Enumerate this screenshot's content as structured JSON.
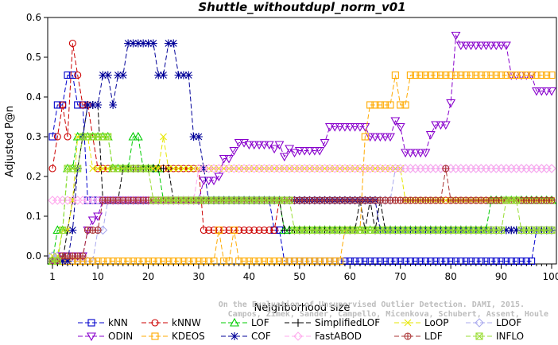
{
  "chart_data": {
    "type": "line",
    "title": "Shuttle_withoutdupl_norm_v01",
    "xlabel": "Neighborhood size",
    "ylabel": "Adjusted P@n",
    "xlim": [
      1,
      100
    ],
    "ylim": [
      -0.02,
      0.6
    ],
    "xticks": [
      1,
      10,
      20,
      30,
      40,
      50,
      60,
      70,
      80,
      90,
      100
    ],
    "yticks": [
      0.0,
      0.1,
      0.2,
      0.3,
      0.4,
      0.5,
      0.6
    ],
    "xtick_labels": [
      "1",
      "10",
      "20",
      "30",
      "40",
      "50",
      "60",
      "70",
      "80",
      "90",
      "100"
    ],
    "ytick_labels": [
      "0.0",
      "0.1",
      "0.2",
      "0.3",
      "0.4",
      "0.5",
      "0.6"
    ],
    "grid": false,
    "legend_position": "bottom",
    "credit": "Campos, Zimek, Sander, Campello, Micenkova, Schubert, Assent, Houle\nOn the Evaluation of Unsupervised Outlier Detection. DAMI, 2015.",
    "series": [
      {
        "name": "kNN",
        "color": "#0000cc",
        "marker": "square",
        "dash": "6,3",
        "points": [
          [
            1,
            0.3
          ],
          [
            2,
            0.38
          ],
          [
            3,
            0.38
          ],
          [
            4,
            0.455
          ],
          [
            5,
            0.455
          ],
          [
            6,
            0.38
          ],
          [
            7,
            0.38
          ],
          [
            8,
            0.14
          ],
          [
            20,
            0.14
          ],
          [
            30,
            0.14
          ],
          [
            40,
            0.14
          ],
          [
            44,
            0.14
          ],
          [
            45,
            0.065
          ],
          [
            46,
            0.065
          ],
          [
            47,
            -0.013
          ],
          [
            96,
            -0.013
          ],
          [
            97,
            0.065
          ],
          [
            100,
            0.065
          ]
        ]
      },
      {
        "name": "kNNW",
        "color": "#cc0000",
        "marker": "circle",
        "dash": "6,3",
        "points": [
          [
            1,
            0.22
          ],
          [
            2,
            0.3
          ],
          [
            3,
            0.38
          ],
          [
            4,
            0.3
          ],
          [
            5,
            0.535
          ],
          [
            6,
            0.455
          ],
          [
            7,
            0.38
          ],
          [
            8,
            0.38
          ],
          [
            9,
            0.3
          ],
          [
            10,
            0.22
          ],
          [
            20,
            0.22
          ],
          [
            30,
            0.22
          ],
          [
            31,
            0.065
          ],
          [
            40,
            0.065
          ],
          [
            45,
            0.065
          ],
          [
            46,
            0.14
          ],
          [
            60,
            0.14
          ],
          [
            80,
            0.14
          ],
          [
            100,
            0.14
          ]
        ]
      },
      {
        "name": "LOF",
        "color": "#00cc00",
        "marker": "triangle",
        "dash": "6,3",
        "points": [
          [
            1,
            -0.013
          ],
          [
            2,
            0.065
          ],
          [
            3,
            0.065
          ],
          [
            4,
            0.22
          ],
          [
            5,
            0.22
          ],
          [
            6,
            0.3
          ],
          [
            10,
            0.3
          ],
          [
            12,
            0.3
          ],
          [
            13,
            0.22
          ],
          [
            16,
            0.22
          ],
          [
            17,
            0.3
          ],
          [
            18,
            0.3
          ],
          [
            19,
            0.22
          ],
          [
            22,
            0.22
          ],
          [
            23,
            0.14
          ],
          [
            40,
            0.14
          ],
          [
            46,
            0.14
          ],
          [
            47,
            0.065
          ],
          [
            60,
            0.065
          ],
          [
            70,
            0.065
          ],
          [
            87,
            0.065
          ],
          [
            88,
            0.14
          ],
          [
            100,
            0.14
          ]
        ]
      },
      {
        "name": "SimplifiedLOF",
        "color": "#000000",
        "marker": "plus",
        "dash": "6,3",
        "points": [
          [
            1,
            -0.013
          ],
          [
            2,
            -0.013
          ],
          [
            3,
            -0.013
          ],
          [
            4,
            0.065
          ],
          [
            5,
            0.14
          ],
          [
            6,
            0.22
          ],
          [
            7,
            0.3
          ],
          [
            8,
            0.38
          ],
          [
            9,
            0.38
          ],
          [
            10,
            0.38
          ],
          [
            11,
            0.14
          ],
          [
            14,
            0.14
          ],
          [
            15,
            0.22
          ],
          [
            24,
            0.22
          ],
          [
            25,
            0.14
          ],
          [
            45,
            0.14
          ],
          [
            47,
            0.065
          ],
          [
            60,
            0.065
          ],
          [
            62,
            0.14
          ],
          [
            63,
            0.065
          ],
          [
            64,
            0.14
          ],
          [
            65,
            0.065
          ],
          [
            66,
            0.14
          ],
          [
            67,
            0.065
          ],
          [
            100,
            0.065
          ]
        ]
      },
      {
        "name": "LoOP",
        "color": "#e6e600",
        "marker": "x",
        "dash": "6,3",
        "points": [
          [
            1,
            0.0
          ],
          [
            2,
            0.0
          ],
          [
            3,
            0.065
          ],
          [
            4,
            0.065
          ],
          [
            5,
            0.14
          ],
          [
            6,
            0.3
          ],
          [
            7,
            0.3
          ],
          [
            8,
            0.3
          ],
          [
            9,
            0.22
          ],
          [
            10,
            0.22
          ],
          [
            15,
            0.22
          ],
          [
            22,
            0.22
          ],
          [
            23,
            0.3
          ],
          [
            24,
            0.22
          ],
          [
            40,
            0.22
          ],
          [
            50,
            0.22
          ],
          [
            60,
            0.22
          ],
          [
            70,
            0.22
          ],
          [
            71,
            0.14
          ],
          [
            75,
            0.14
          ],
          [
            80,
            0.14
          ],
          [
            100,
            0.14
          ]
        ]
      },
      {
        "name": "LDOF",
        "color": "#aaaaee",
        "marker": "diamond",
        "dash": "6,3",
        "points": [
          [
            1,
            0.0
          ],
          [
            2,
            0.0
          ],
          [
            3,
            -0.013
          ],
          [
            10,
            0.065
          ],
          [
            11,
            0.065
          ],
          [
            12,
            0.14
          ],
          [
            20,
            0.14
          ],
          [
            30,
            0.14
          ],
          [
            40,
            0.14
          ],
          [
            50,
            0.14
          ],
          [
            55,
            0.14
          ],
          [
            60,
            0.14
          ],
          [
            68,
            0.14
          ],
          [
            69,
            0.22
          ],
          [
            80,
            0.22
          ],
          [
            100,
            0.22
          ]
        ]
      },
      {
        "name": "ODIN",
        "color": "#8800cc",
        "marker": "triangle-down",
        "dash": "6,3",
        "points": [
          [
            1,
            -0.013
          ],
          [
            2,
            -0.013
          ],
          [
            3,
            0.0
          ],
          [
            6,
            0.0
          ],
          [
            7,
            0.0
          ],
          [
            8,
            0.065
          ],
          [
            9,
            0.09
          ],
          [
            10,
            0.1
          ],
          [
            11,
            0.14
          ],
          [
            12,
            0.14
          ],
          [
            13,
            0.14
          ],
          [
            20,
            0.14
          ],
          [
            30,
            0.14
          ],
          [
            31,
            0.19
          ],
          [
            32,
            0.19
          ],
          [
            33,
            0.19
          ],
          [
            34,
            0.2
          ],
          [
            35,
            0.245
          ],
          [
            36,
            0.245
          ],
          [
            37,
            0.265
          ],
          [
            38,
            0.285
          ],
          [
            40,
            0.28
          ],
          [
            45,
            0.27
          ],
          [
            46,
            0.28
          ],
          [
            47,
            0.25
          ],
          [
            48,
            0.27
          ],
          [
            49,
            0.26
          ],
          [
            50,
            0.265
          ],
          [
            54,
            0.265
          ],
          [
            55,
            0.285
          ],
          [
            56,
            0.325
          ],
          [
            63,
            0.325
          ],
          [
            64,
            0.3
          ],
          [
            68,
            0.3
          ],
          [
            69,
            0.34
          ],
          [
            70,
            0.325
          ],
          [
            71,
            0.26
          ],
          [
            75,
            0.26
          ],
          [
            76,
            0.305
          ],
          [
            77,
            0.33
          ],
          [
            79,
            0.33
          ],
          [
            80,
            0.385
          ],
          [
            81,
            0.555
          ],
          [
            82,
            0.53
          ],
          [
            91,
            0.53
          ],
          [
            92,
            0.455
          ],
          [
            96,
            0.455
          ],
          [
            97,
            0.415
          ],
          [
            100,
            0.415
          ]
        ]
      },
      {
        "name": "KDEOS",
        "color": "#ffaa00",
        "marker": "square",
        "dash": "6,3",
        "points": [
          [
            1,
            -0.013
          ],
          [
            2,
            -0.013
          ],
          [
            5,
            -0.013
          ],
          [
            6,
            -0.013
          ],
          [
            10,
            -0.013
          ],
          [
            20,
            -0.013
          ],
          [
            30,
            -0.013
          ],
          [
            33,
            -0.013
          ],
          [
            34,
            0.065
          ],
          [
            35,
            -0.013
          ],
          [
            37,
            0.065
          ],
          [
            38,
            -0.013
          ],
          [
            40,
            -0.013
          ],
          [
            50,
            -0.013
          ],
          [
            58,
            -0.013
          ],
          [
            59,
            0.065
          ],
          [
            62,
            0.065
          ],
          [
            63,
            0.3
          ],
          [
            64,
            0.38
          ],
          [
            68,
            0.38
          ],
          [
            69,
            0.455
          ],
          [
            70,
            0.38
          ],
          [
            71,
            0.38
          ],
          [
            72,
            0.455
          ],
          [
            80,
            0.455
          ],
          [
            90,
            0.455
          ],
          [
            100,
            0.455
          ]
        ]
      },
      {
        "name": "COF",
        "color": "#000099",
        "marker": "asterisk",
        "dash": "6,3",
        "points": [
          [
            1,
            -0.013
          ],
          [
            2,
            -0.013
          ],
          [
            3,
            -0.013
          ],
          [
            4,
            -0.013
          ],
          [
            5,
            0.065
          ],
          [
            6,
            0.22
          ],
          [
            7,
            0.3
          ],
          [
            8,
            0.38
          ],
          [
            9,
            0.38
          ],
          [
            10,
            0.38
          ],
          [
            11,
            0.455
          ],
          [
            12,
            0.455
          ],
          [
            13,
            0.38
          ],
          [
            14,
            0.455
          ],
          [
            15,
            0.455
          ],
          [
            16,
            0.535
          ],
          [
            21,
            0.535
          ],
          [
            22,
            0.455
          ],
          [
            23,
            0.455
          ],
          [
            24,
            0.535
          ],
          [
            25,
            0.535
          ],
          [
            26,
            0.455
          ],
          [
            28,
            0.455
          ],
          [
            29,
            0.3
          ],
          [
            30,
            0.3
          ],
          [
            31,
            0.22
          ],
          [
            32,
            0.14
          ],
          [
            40,
            0.14
          ],
          [
            60,
            0.14
          ],
          [
            65,
            0.14
          ],
          [
            66,
            0.065
          ],
          [
            100,
            0.065
          ]
        ]
      },
      {
        "name": "FastABOD",
        "color": "#ffaaee",
        "marker": "diamond",
        "dash": "6,3",
        "points": [
          [
            1,
            0.14
          ],
          [
            2,
            0.14
          ],
          [
            3,
            0.14
          ],
          [
            10,
            0.14
          ],
          [
            20,
            0.14
          ],
          [
            30,
            0.22
          ],
          [
            40,
            0.22
          ],
          [
            50,
            0.22
          ],
          [
            60,
            0.22
          ],
          [
            70,
            0.22
          ],
          [
            80,
            0.22
          ],
          [
            90,
            0.22
          ],
          [
            100,
            0.22
          ]
        ]
      },
      {
        "name": "LDF",
        "color": "#aa3333",
        "marker": "circle-plus",
        "dash": "6,3",
        "points": [
          [
            1,
            -0.013
          ],
          [
            2,
            -0.013
          ],
          [
            3,
            0.0
          ],
          [
            6,
            0.0
          ],
          [
            8,
            0.065
          ],
          [
            9,
            0.065
          ],
          [
            10,
            0.065
          ],
          [
            11,
            0.14
          ],
          [
            20,
            0.14
          ],
          [
            30,
            0.14
          ],
          [
            40,
            0.14
          ],
          [
            50,
            0.14
          ],
          [
            60,
            0.14
          ],
          [
            70,
            0.14
          ],
          [
            78,
            0.14
          ],
          [
            79,
            0.22
          ],
          [
            80,
            0.14
          ],
          [
            100,
            0.14
          ]
        ]
      },
      {
        "name": "INFLO",
        "color": "#99dd33",
        "marker": "square-x",
        "dash": "6,3",
        "points": [
          [
            1,
            -0.013
          ],
          [
            2,
            -0.013
          ],
          [
            3,
            0.065
          ],
          [
            4,
            0.22
          ],
          [
            5,
            0.22
          ],
          [
            6,
            0.22
          ],
          [
            7,
            0.3
          ],
          [
            10,
            0.3
          ],
          [
            12,
            0.3
          ],
          [
            13,
            0.22
          ],
          [
            20,
            0.22
          ],
          [
            21,
            0.14
          ],
          [
            40,
            0.14
          ],
          [
            48,
            0.14
          ],
          [
            49,
            0.065
          ],
          [
            60,
            0.065
          ],
          [
            80,
            0.065
          ],
          [
            90,
            0.065
          ],
          [
            91,
            0.14
          ],
          [
            93,
            0.14
          ],
          [
            94,
            0.065
          ],
          [
            100,
            0.065
          ]
        ]
      }
    ]
  }
}
